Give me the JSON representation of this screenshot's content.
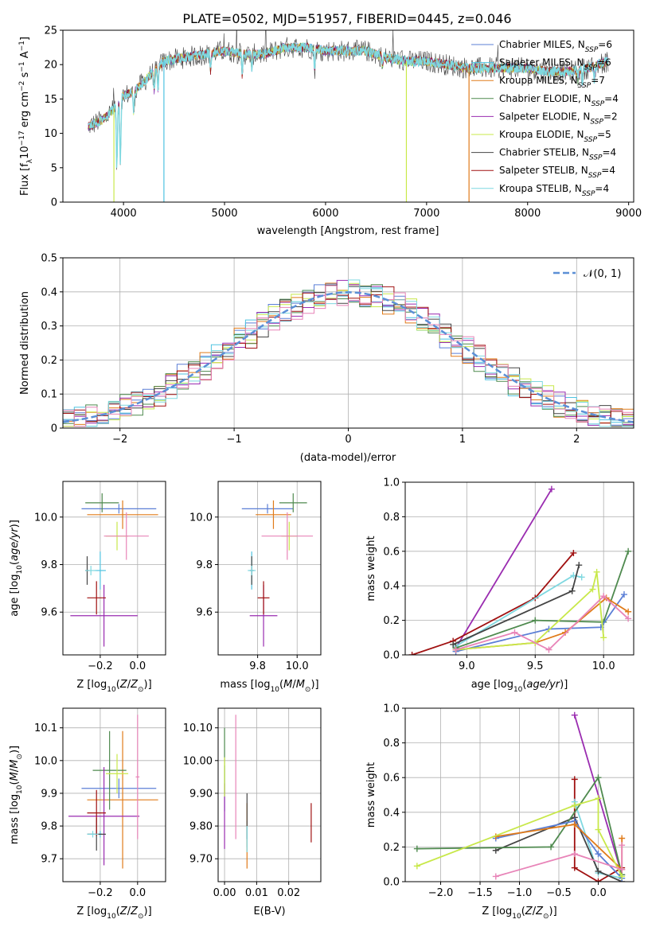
{
  "title": "PLATE=0502, MJD=51957, FIBERID=0445, z=0.046",
  "colors": {
    "chabrier_miles": "#5b7fd6",
    "salpeter_miles": "#4fc3e0",
    "kroupa_miles": "#e07b1a",
    "chabrier_elodie": "#4f8a4f",
    "salpeter_elodie": "#9a2cb0",
    "kroupa_elodie": "#c8e84a",
    "chabrier_stelib": "#444444",
    "salpeter_stelib": "#a01010",
    "kroupa_stelib": "#7fd8e0",
    "pink": "#e884b8",
    "gaussian": "#5b8fd6"
  },
  "chart_data": [
    {
      "id": "spectrum",
      "type": "line",
      "xlabel": "wavelength [Angstrom, rest frame]",
      "ylabel": "Flux [f_λ10^-17 erg cm^-2 s^-1 A^-1]",
      "xlim": [
        3400,
        9050
      ],
      "ylim": [
        0,
        25
      ],
      "xticks": [
        4000,
        5000,
        6000,
        7000,
        8000,
        9000
      ],
      "yticks": [
        0,
        5,
        10,
        15,
        20,
        25
      ],
      "grid": false,
      "legend_position": "top-right",
      "legend": [
        {
          "label": "Chabrier MILES, N",
          "sub": "SSP",
          "val": "=6",
          "color": "chabrier_miles"
        },
        {
          "label": "Salpeter MILES, N",
          "sub": "SSP",
          "val": "=6",
          "color": "salpeter_miles"
        },
        {
          "label": "Kroupa MILES, N",
          "sub": "SSP",
          "val": "=7",
          "color": "kroupa_miles"
        },
        {
          "label": "Chabrier ELODIE, N",
          "sub": "SSP",
          "val": "=4",
          "color": "chabrier_elodie"
        },
        {
          "label": "Salpeter ELODIE, N",
          "sub": "SSP",
          "val": "=2",
          "color": "salpeter_elodie"
        },
        {
          "label": "Kroupa ELODIE, N",
          "sub": "SSP",
          "val": "=5",
          "color": "kroupa_elodie"
        },
        {
          "label": "Chabrier STELIB, N",
          "sub": "SSP",
          "val": "=4",
          "color": "chabrier_stelib"
        },
        {
          "label": "Salpeter STELIB, N",
          "sub": "SSP",
          "val": "=4",
          "color": "salpeter_stelib"
        },
        {
          "label": "Kroupa STELIB, N",
          "sub": "SSP",
          "val": "=4",
          "color": "kroupa_stelib"
        }
      ],
      "continuum": [
        [
          3650,
          11
        ],
        [
          3800,
          12
        ],
        [
          3900,
          13.5
        ],
        [
          4000,
          15.5
        ],
        [
          4100,
          16
        ],
        [
          4200,
          17.5
        ],
        [
          4400,
          20.5
        ],
        [
          4600,
          21
        ],
        [
          4800,
          21.5
        ],
        [
          5000,
          22
        ],
        [
          5200,
          21.5
        ],
        [
          5400,
          21.5
        ],
        [
          5600,
          22.5
        ],
        [
          5800,
          22.5
        ],
        [
          6000,
          22
        ],
        [
          6200,
          22
        ],
        [
          6400,
          22
        ],
        [
          6600,
          21
        ],
        [
          6800,
          20.5
        ],
        [
          7000,
          20.5
        ],
        [
          7200,
          20
        ],
        [
          7400,
          19.5
        ],
        [
          7600,
          19.5
        ],
        [
          7800,
          19.5
        ],
        [
          8000,
          19.5
        ],
        [
          8200,
          19
        ],
        [
          8400,
          19
        ],
        [
          8600,
          19.5
        ],
        [
          8800,
          20.5
        ]
      ],
      "absorption_lines": [
        [
          3934,
          9
        ],
        [
          3969,
          9
        ],
        [
          4102,
          3
        ],
        [
          4304,
          3
        ],
        [
          4341,
          3
        ],
        [
          4861,
          2.5
        ],
        [
          5175,
          3
        ],
        [
          5270,
          2
        ],
        [
          5892,
          3
        ],
        [
          6563,
          1.5
        ],
        [
          8498,
          1.5
        ],
        [
          8542,
          2
        ],
        [
          8662,
          2
        ]
      ],
      "drops": [
        {
          "x": 3905,
          "to": 0,
          "color": "kroupa_elodie"
        },
        {
          "x": 4400,
          "to": 0,
          "color": "salpeter_miles"
        },
        {
          "x": 6800,
          "to": 0,
          "color": "kroupa_elodie"
        },
        {
          "x": 7420,
          "to": 0,
          "color": "kroupa_miles"
        }
      ]
    },
    {
      "id": "residuals",
      "type": "line",
      "xlabel": "(data-model)/error",
      "ylabel": "Normed distribution",
      "xlim": [
        -2.5,
        2.5
      ],
      "ylim": [
        0,
        0.5
      ],
      "xticks": [
        -2,
        -1,
        0,
        1,
        2
      ],
      "yticks": [
        0.0,
        0.1,
        0.2,
        0.3,
        0.4,
        0.5
      ],
      "grid": true,
      "legend_position": "top-right",
      "legend": [
        {
          "label": "𝒩(0, 1)",
          "color": "gaussian",
          "style": "dashed"
        }
      ],
      "bin_width": 0.1,
      "series_colors": [
        "chabrier_miles",
        "salpeter_miles",
        "kroupa_miles",
        "chabrier_elodie",
        "salpeter_elodie",
        "kroupa_elodie",
        "chabrier_stelib",
        "salpeter_stelib",
        "kroupa_stelib",
        "pink"
      ]
    },
    {
      "id": "age_vs_Z",
      "type": "scatter",
      "xlabel": "Z [log10(Z/Z⊙)]",
      "ylabel": "age  [log10(age/yr)]",
      "xlim": [
        -0.4,
        0.15
      ],
      "ylim": [
        9.42,
        10.15
      ],
      "xticks": [
        -0.2,
        0.0
      ],
      "yticks": [
        9.6,
        9.8,
        10.0
      ],
      "grid": true,
      "points": [
        {
          "x": -0.1,
          "y": 10.035,
          "xe": 0.2,
          "ye": 0.02,
          "color": "chabrier_miles"
        },
        {
          "x": -0.2,
          "y": 9.775,
          "xe": 0.03,
          "ye": 0.08,
          "color": "salpeter_miles"
        },
        {
          "x": -0.08,
          "y": 10.01,
          "xe": 0.19,
          "ye": 0.06,
          "color": "kroupa_miles"
        },
        {
          "x": -0.19,
          "y": 10.06,
          "xe": 0.09,
          "ye": 0.04,
          "color": "chabrier_elodie"
        },
        {
          "x": -0.18,
          "y": 9.585,
          "xe": 0.18,
          "ye": 0.13,
          "color": "salpeter_elodie"
        },
        {
          "x": -0.11,
          "y": 9.92,
          "xe": 0.06,
          "ye": 0.06,
          "color": "kroupa_elodie"
        },
        {
          "x": -0.27,
          "y": 9.775,
          "xe": 0.01,
          "ye": 0.06,
          "color": "chabrier_stelib"
        },
        {
          "x": -0.22,
          "y": 9.66,
          "xe": 0.05,
          "ye": 0.07,
          "color": "salpeter_stelib"
        },
        {
          "x": -0.25,
          "y": 9.775,
          "xe": 0.03,
          "ye": 0.02,
          "color": "kroupa_stelib"
        },
        {
          "x": -0.06,
          "y": 9.92,
          "xe": 0.12,
          "ye": 0.1,
          "color": "pink"
        }
      ]
    },
    {
      "id": "age_vs_mass",
      "type": "scatter",
      "xlabel": "mass [log10(M/M⊙)]",
      "ylabel": "",
      "xlim": [
        9.6,
        10.12
      ],
      "ylim": [
        9.42,
        10.15
      ],
      "xticks": [
        9.8,
        10.0
      ],
      "yticks": [
        9.6,
        9.8,
        10.0
      ],
      "grid": true,
      "points": [
        {
          "x": 9.85,
          "y": 10.035,
          "xe": 0.13,
          "ye": 0.02,
          "color": "chabrier_miles"
        },
        {
          "x": 9.77,
          "y": 9.775,
          "xe": 0.01,
          "ye": 0.08,
          "color": "salpeter_miles"
        },
        {
          "x": 9.88,
          "y": 10.01,
          "xe": 0.09,
          "ye": 0.06,
          "color": "kroupa_miles"
        },
        {
          "x": 9.98,
          "y": 10.06,
          "xe": 0.07,
          "ye": 0.04,
          "color": "chabrier_elodie"
        },
        {
          "x": 9.83,
          "y": 9.585,
          "xe": 0.07,
          "ye": 0.13,
          "color": "salpeter_elodie"
        },
        {
          "x": 9.96,
          "y": 9.92,
          "xe": 0.04,
          "ye": 0.06,
          "color": "kroupa_elodie"
        },
        {
          "x": 9.77,
          "y": 9.775,
          "xe": 0.01,
          "ye": 0.06,
          "color": "chabrier_stelib"
        },
        {
          "x": 9.83,
          "y": 9.66,
          "xe": 0.03,
          "ye": 0.07,
          "color": "salpeter_stelib"
        },
        {
          "x": 9.77,
          "y": 9.775,
          "xe": 0.02,
          "ye": 0.02,
          "color": "kroupa_stelib"
        },
        {
          "x": 9.95,
          "y": 9.92,
          "xe": 0.13,
          "ye": 0.1,
          "color": "pink"
        }
      ]
    },
    {
      "id": "weight_vs_age",
      "type": "line",
      "xlabel": "age  [log10(age/yr)]",
      "ylabel": "mass weight",
      "xlim": [
        8.55,
        10.22
      ],
      "ylim": [
        0,
        1.0
      ],
      "xticks": [
        9.0,
        9.5,
        10.0
      ],
      "yticks": [
        0.0,
        0.2,
        0.4,
        0.6,
        0.8,
        1.0
      ],
      "grid": true,
      "series": [
        {
          "color": "salpeter_elodie",
          "x": [
            8.92,
            9.62
          ],
          "y": [
            0.04,
            0.96
          ]
        },
        {
          "color": "salpeter_stelib",
          "x": [
            8.6,
            8.9,
            9.5,
            9.78
          ],
          "y": [
            0.0,
            0.08,
            0.33,
            0.59
          ]
        },
        {
          "color": "kroupa_stelib",
          "x": [
            8.92,
            9.78,
            9.84
          ],
          "y": [
            0.05,
            0.46,
            0.45
          ]
        },
        {
          "color": "chabrier_stelib",
          "x": [
            8.9,
            9.77,
            9.82
          ],
          "y": [
            0.06,
            0.37,
            0.52
          ]
        },
        {
          "color": "chabrier_elodie",
          "x": [
            8.92,
            9.5,
            10.0,
            10.18
          ],
          "y": [
            0.04,
            0.2,
            0.19,
            0.6
          ]
        },
        {
          "color": "chabrier_miles",
          "x": [
            8.92,
            9.6,
            9.98,
            10.15
          ],
          "y": [
            0.02,
            0.15,
            0.16,
            0.35
          ]
        },
        {
          "color": "kroupa_miles",
          "x": [
            8.92,
            9.5,
            9.72,
            10.02,
            10.18
          ],
          "y": [
            0.03,
            0.07,
            0.13,
            0.33,
            0.25
          ]
        },
        {
          "color": "kroupa_elodie",
          "x": [
            8.92,
            9.5,
            9.92,
            9.95,
            10.0
          ],
          "y": [
            0.03,
            0.07,
            0.38,
            0.48,
            0.1
          ]
        },
        {
          "color": "pink",
          "x": [
            8.92,
            9.35,
            9.6,
            10.0,
            10.18
          ],
          "y": [
            0.03,
            0.13,
            0.03,
            0.34,
            0.21
          ]
        }
      ]
    },
    {
      "id": "mass_vs_Z",
      "type": "scatter",
      "xlabel": "Z [log10(Z/Z⊙)]",
      "ylabel": "mass [log10(M/M⊙)]",
      "xlim": [
        -0.4,
        0.15
      ],
      "ylim": [
        9.63,
        10.16
      ],
      "xticks": [
        -0.2,
        0.0
      ],
      "yticks": [
        9.7,
        9.8,
        9.9,
        10.0,
        10.1
      ],
      "grid": true,
      "points": [
        {
          "x": -0.1,
          "y": 9.915,
          "xe": 0.2,
          "ye": 0.03,
          "color": "chabrier_miles"
        },
        {
          "x": -0.2,
          "y": 9.775,
          "xe": 0.01,
          "ye": 0.01,
          "color": "salpeter_miles"
        },
        {
          "x": -0.08,
          "y": 9.88,
          "xe": 0.19,
          "ye": 0.21,
          "color": "kroupa_miles"
        },
        {
          "x": -0.15,
          "y": 9.97,
          "xe": 0.09,
          "ye": 0.12,
          "color": "chabrier_elodie"
        },
        {
          "x": -0.18,
          "y": 9.83,
          "xe": 0.19,
          "ye": 0.15,
          "color": "salpeter_elodie"
        },
        {
          "x": -0.11,
          "y": 9.96,
          "xe": 0.06,
          "ye": 0.06,
          "color": "kroupa_elodie"
        },
        {
          "x": -0.22,
          "y": 9.775,
          "xe": 0.05,
          "ye": 0.05,
          "color": "chabrier_stelib"
        },
        {
          "x": -0.22,
          "y": 9.84,
          "xe": 0.05,
          "ye": 0.07,
          "color": "salpeter_stelib"
        },
        {
          "x": -0.24,
          "y": 9.775,
          "xe": 0.03,
          "ye": 0.01,
          "color": "kroupa_stelib"
        },
        {
          "x": 0.0,
          "y": 9.95,
          "xe": 0.01,
          "ye": 0.19,
          "color": "pink"
        }
      ]
    },
    {
      "id": "mass_vs_EBV",
      "type": "scatter",
      "xlabel": "E(B-V)",
      "ylabel": "",
      "xlim": [
        -0.002,
        0.03
      ],
      "ylim": [
        9.63,
        10.16
      ],
      "xticks": [
        0.0,
        0.01,
        0.02
      ],
      "yticks": [
        9.7,
        9.8,
        9.9,
        10.0,
        10.1
      ],
      "grid": true,
      "points": [
        {
          "x": 0.0,
          "y": 9.915,
          "xe": 0,
          "ye": 0.07,
          "color": "chabrier_miles"
        },
        {
          "x": 0.007,
          "y": 9.775,
          "xe": 0,
          "ye": 0.04,
          "color": "salpeter_miles"
        },
        {
          "x": 0.007,
          "y": 9.77,
          "xe": 0,
          "ye": 0.1,
          "color": "kroupa_miles"
        },
        {
          "x": 0.0,
          "y": 10.0,
          "xe": 0,
          "ye": 0.1,
          "color": "chabrier_elodie"
        },
        {
          "x": 0.0,
          "y": 9.83,
          "xe": 0,
          "ye": 0.1,
          "color": "salpeter_elodie"
        },
        {
          "x": 0.0,
          "y": 9.95,
          "xe": 0,
          "ye": 0.06,
          "color": "kroupa_elodie"
        },
        {
          "x": 0.007,
          "y": 9.83,
          "xe": 0,
          "ye": 0.07,
          "color": "chabrier_stelib"
        },
        {
          "x": 0.027,
          "y": 9.81,
          "xe": 0,
          "ye": 0.06,
          "color": "salpeter_stelib"
        },
        {
          "x": 0.007,
          "y": 9.76,
          "xe": 0,
          "ye": 0.04,
          "color": "kroupa_stelib"
        },
        {
          "x": 0.0035,
          "y": 9.95,
          "xe": 0,
          "ye": 0.19,
          "color": "pink"
        }
      ]
    },
    {
      "id": "weight_vs_Z",
      "type": "line",
      "xlabel": "Z [log10(Z/Z⊙)]",
      "ylabel": "mass weight",
      "xlim": [
        -2.45,
        0.45
      ],
      "ylim": [
        0,
        1.0
      ],
      "xticks": [
        -2.0,
        -1.5,
        -1.0,
        -0.5,
        0.0
      ],
      "yticks": [
        0.0,
        0.2,
        0.4,
        0.6,
        0.8,
        1.0
      ],
      "grid": true,
      "series": [
        {
          "color": "salpeter_elodie",
          "x": [
            -0.3,
            0.3
          ],
          "y": [
            0.96,
            0.04
          ]
        },
        {
          "color": "salpeter_stelib",
          "x": [
            -0.3,
            -0.3,
            -0.3,
            0.0,
            0.3
          ],
          "y": [
            0.59,
            0.33,
            0.08,
            0.0,
            0.08
          ]
        },
        {
          "color": "kroupa_stelib",
          "x": [
            -0.3,
            0.0,
            0.3
          ],
          "y": [
            0.46,
            0.05,
            0.02
          ]
        },
        {
          "color": "chabrier_stelib",
          "x": [
            -1.3,
            -0.3,
            0.0,
            0.3
          ],
          "y": [
            0.18,
            0.37,
            0.06,
            0.0
          ]
        },
        {
          "color": "chabrier_elodie",
          "x": [
            -2.3,
            -0.6,
            0.0,
            0.3
          ],
          "y": [
            0.19,
            0.2,
            0.6,
            0.04
          ]
        },
        {
          "color": "chabrier_miles",
          "x": [
            -1.3,
            -0.3,
            0.0,
            0.3
          ],
          "y": [
            0.25,
            0.35,
            0.16,
            0.02
          ]
        },
        {
          "color": "kroupa_miles",
          "x": [
            -1.3,
            -0.3,
            0.3,
            0.3
          ],
          "y": [
            0.26,
            0.33,
            0.07,
            0.25
          ]
        },
        {
          "color": "kroupa_elodie",
          "x": [
            -2.3,
            -0.3,
            0.0,
            0.0,
            0.3
          ],
          "y": [
            0.09,
            0.44,
            0.48,
            0.3,
            0.03
          ]
        },
        {
          "color": "pink",
          "x": [
            -1.3,
            -0.3,
            0.3,
            0.3
          ],
          "y": [
            0.03,
            0.16,
            0.07,
            0.21
          ]
        }
      ]
    }
  ]
}
